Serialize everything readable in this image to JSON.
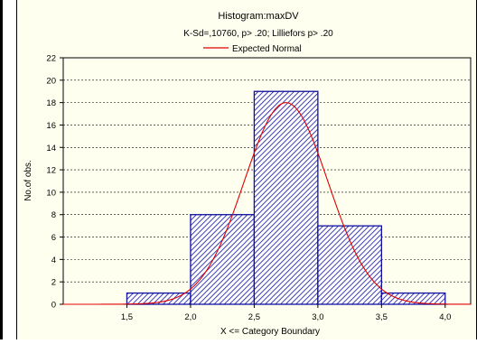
{
  "chart_data": {
    "type": "bar",
    "title": "Histogram:maxDV",
    "subtitle": "K-Sd=,10760, p> .20; Lilliefors p> .20",
    "legend": [
      "Expected Normal"
    ],
    "xlabel": "X <= Category Boundary",
    "ylabel": "No.of obs.",
    "x_ticks": [
      "1,5",
      "2,0",
      "2,5",
      "3,0",
      "3,5",
      "4,0"
    ],
    "y_ticks": [
      "0",
      "2",
      "4",
      "6",
      "8",
      "10",
      "12",
      "14",
      "16",
      "18",
      "20",
      "22"
    ],
    "ylim": [
      0,
      22
    ],
    "xlim": [
      1.0,
      4.2
    ],
    "bins": [
      {
        "from": 1.5,
        "to": 2.0,
        "value": 1
      },
      {
        "from": 2.0,
        "to": 2.5,
        "value": 8
      },
      {
        "from": 2.5,
        "to": 3.0,
        "value": 19
      },
      {
        "from": 3.0,
        "to": 3.5,
        "value": 7
      },
      {
        "from": 3.5,
        "to": 4.0,
        "value": 1
      }
    ],
    "expected_normal": {
      "peak_x": 2.75,
      "peak_y": 18,
      "sd": 0.33,
      "color": "#e00000"
    },
    "bar_color": "#1010a0",
    "grid": true
  }
}
